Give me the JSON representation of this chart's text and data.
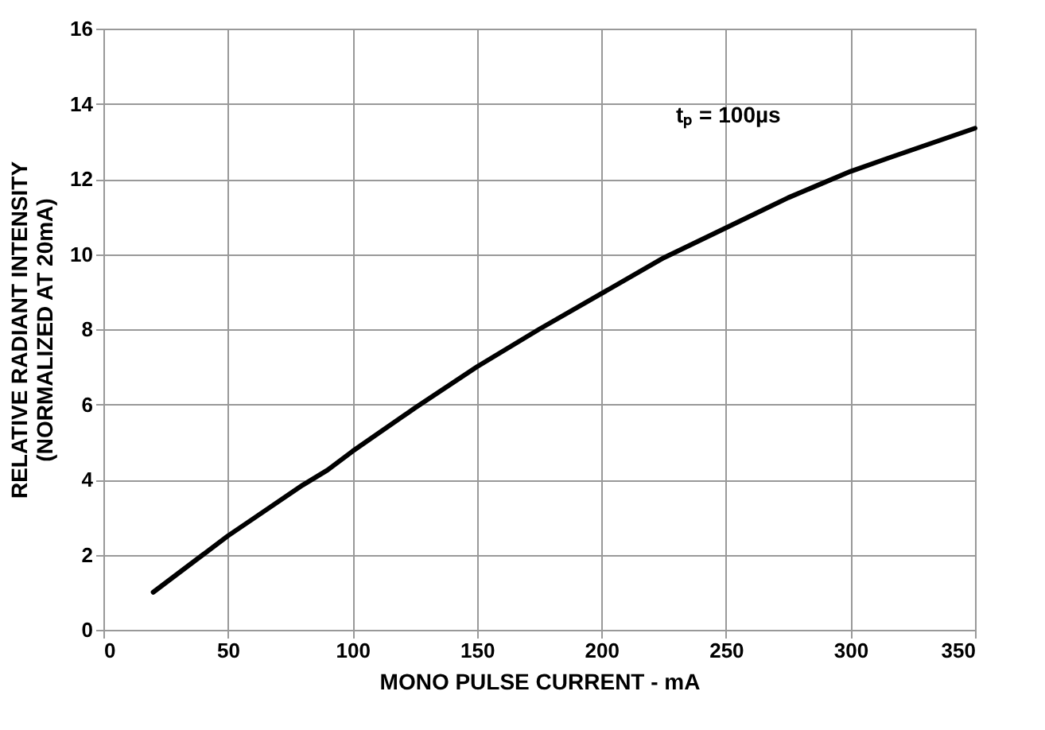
{
  "chart_data": {
    "type": "line",
    "xlabel": "MONO PULSE CURRENT - mA",
    "ylabel": "RELATIVE RADIANT INTENSITY\n(NORMALIZED AT 20mA)",
    "annotations": [
      "tₚ = 100µs"
    ],
    "x": [
      20,
      40,
      50,
      60,
      80,
      90,
      100,
      125,
      150,
      175,
      200,
      225,
      250,
      275,
      300,
      315,
      350
    ],
    "series": [
      {
        "color": "#000000",
        "values": [
          1.0,
          2.0,
          2.5,
          2.95,
          3.85,
          4.25,
          4.75,
          5.9,
          7.0,
          8.0,
          8.95,
          9.9,
          10.7,
          11.5,
          12.2,
          12.55,
          13.35
        ]
      }
    ],
    "xlim": [
      0,
      350
    ],
    "xticks": [
      0,
      50,
      100,
      150,
      200,
      250,
      300,
      350
    ],
    "ylim": [
      0,
      16
    ],
    "yticks": [
      0,
      2,
      4,
      6,
      8,
      10,
      12,
      14,
      16
    ],
    "grid": true,
    "marker": "none",
    "line_style": "solid"
  }
}
